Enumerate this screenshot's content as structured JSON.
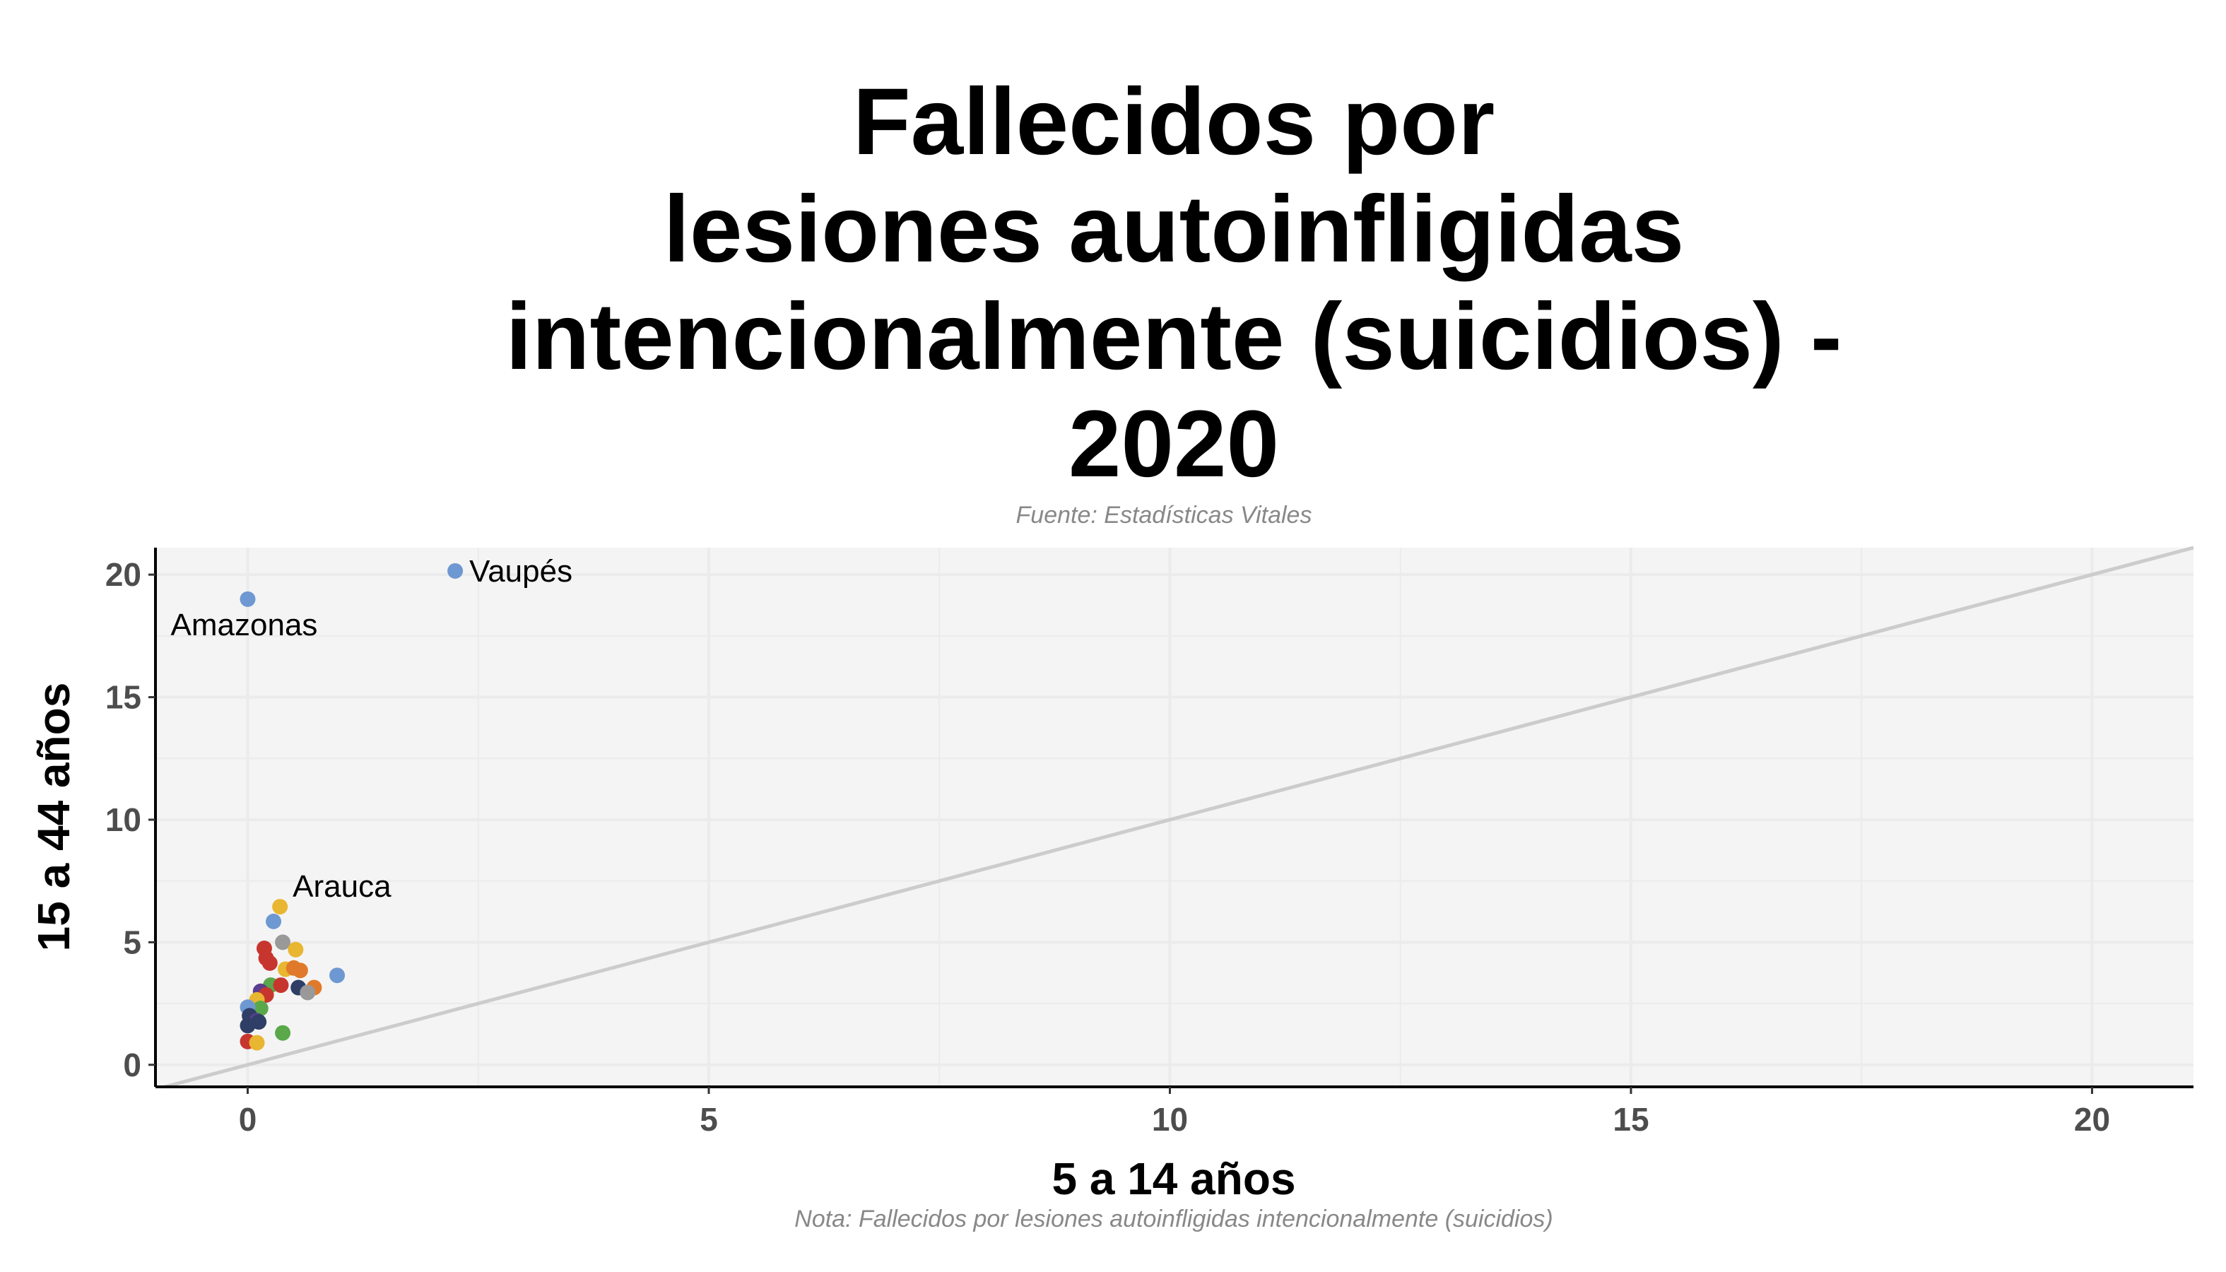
{
  "chart_data": {
    "type": "scatter",
    "title_lines": [
      "Fallecidos por",
      "lesiones autoinfligidas",
      "intencionalmente (suicidios) -",
      "2020"
    ],
    "subtitle": "Fuente: Estadísticas Vitales",
    "caption": "Nota: Fallecidos por lesiones autoinfligidas intencionalmente (suicidios)",
    "xlabel": "5 a 14 años",
    "ylabel": "15 a 44 años",
    "xlim": [
      -1,
      21.1
    ],
    "ylim": [
      -0.9,
      21.1
    ],
    "x_ticks": [
      0,
      5,
      10,
      15,
      20
    ],
    "y_ticks": [
      0,
      5,
      10,
      15,
      20
    ],
    "grid": true,
    "reference_line": "y = x",
    "points": [
      {
        "x": 2.25,
        "y": 20.15,
        "color": "#6e98d2",
        "label": "Vaupés"
      },
      {
        "x": 0.0,
        "y": 19.0,
        "color": "#6e98d2",
        "label": "Amazonas"
      },
      {
        "x": 0.35,
        "y": 6.45,
        "color": "#e8b630",
        "label": "Arauca"
      },
      {
        "x": 0.28,
        "y": 5.85,
        "color": "#6e98d2",
        "label": ""
      },
      {
        "x": 0.38,
        "y": 5.0,
        "color": "#999999",
        "label": ""
      },
      {
        "x": 0.18,
        "y": 4.75,
        "color": "#c7362e",
        "label": ""
      },
      {
        "x": 0.52,
        "y": 4.7,
        "color": "#e8b630",
        "label": ""
      },
      {
        "x": 0.2,
        "y": 4.35,
        "color": "#c7362e",
        "label": ""
      },
      {
        "x": 0.24,
        "y": 4.15,
        "color": "#c7362e",
        "label": ""
      },
      {
        "x": 0.41,
        "y": 3.9,
        "color": "#e8b630",
        "label": ""
      },
      {
        "x": 0.5,
        "y": 3.95,
        "color": "#e07a2a",
        "label": ""
      },
      {
        "x": 0.57,
        "y": 3.85,
        "color": "#e07a2a",
        "label": ""
      },
      {
        "x": 0.97,
        "y": 3.65,
        "color": "#6e98d2",
        "label": ""
      },
      {
        "x": 0.25,
        "y": 3.25,
        "color": "#5aa84a",
        "label": ""
      },
      {
        "x": 0.36,
        "y": 3.25,
        "color": "#c7362e",
        "label": ""
      },
      {
        "x": 0.55,
        "y": 3.15,
        "color": "#2e3e66",
        "label": ""
      },
      {
        "x": 0.72,
        "y": 3.15,
        "color": "#e07a2a",
        "label": ""
      },
      {
        "x": 0.65,
        "y": 2.95,
        "color": "#999999",
        "label": ""
      },
      {
        "x": 0.14,
        "y": 3.0,
        "color": "#5b3e8e",
        "label": ""
      },
      {
        "x": 0.2,
        "y": 2.85,
        "color": "#c7362e",
        "label": ""
      },
      {
        "x": 0.1,
        "y": 2.65,
        "color": "#e8b630",
        "label": ""
      },
      {
        "x": 0.14,
        "y": 2.3,
        "color": "#5aa84a",
        "label": ""
      },
      {
        "x": 0.0,
        "y": 2.35,
        "color": "#6e98d2",
        "label": ""
      },
      {
        "x": 0.02,
        "y": 2.0,
        "color": "#2e3e66",
        "label": ""
      },
      {
        "x": 0.1,
        "y": 1.8,
        "color": "#5b3e8e",
        "label": ""
      },
      {
        "x": 0.12,
        "y": 1.75,
        "color": "#2e3e66",
        "label": ""
      },
      {
        "x": 0.0,
        "y": 1.6,
        "color": "#2e3e66",
        "label": ""
      },
      {
        "x": 0.38,
        "y": 1.3,
        "color": "#5aa84a",
        "label": ""
      },
      {
        "x": 0.0,
        "y": 0.95,
        "color": "#c7362e",
        "label": ""
      },
      {
        "x": 0.1,
        "y": 0.9,
        "color": "#e8b630",
        "label": ""
      }
    ]
  }
}
